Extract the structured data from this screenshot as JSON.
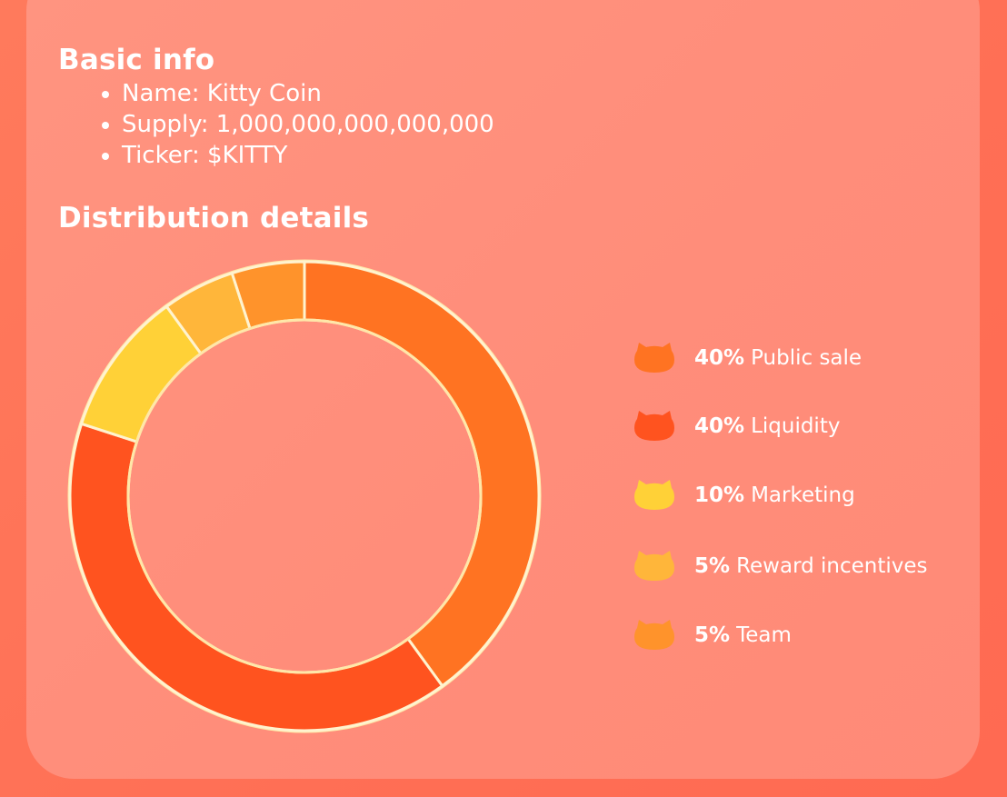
{
  "basic_info": {
    "title": "Basic info",
    "items": [
      "Name: Kitty Coin",
      "Supply: 1,000,000,000,000,000",
      "Ticker: $KITTY"
    ]
  },
  "distribution": {
    "title": "Distribution details"
  },
  "chart_data": {
    "type": "pie",
    "donut": true,
    "title": "",
    "legend_position": "right",
    "slices": [
      {
        "label": "Public sale",
        "percent_label": "40%",
        "value": 40,
        "color": "#ff7322"
      },
      {
        "label": "Liquidity",
        "percent_label": "40%",
        "value": 40,
        "color": "#ff531f"
      },
      {
        "label": "Marketing",
        "percent_label": "10%",
        "value": 10,
        "color": "#ffd137"
      },
      {
        "label": "Reward incentives",
        "percent_label": "5%",
        "value": 5,
        "color": "#ffb63a"
      },
      {
        "label": "Team",
        "percent_label": "5%",
        "value": 5,
        "color": "#ff932b"
      }
    ]
  },
  "legend_icon": "cat-head-icon"
}
